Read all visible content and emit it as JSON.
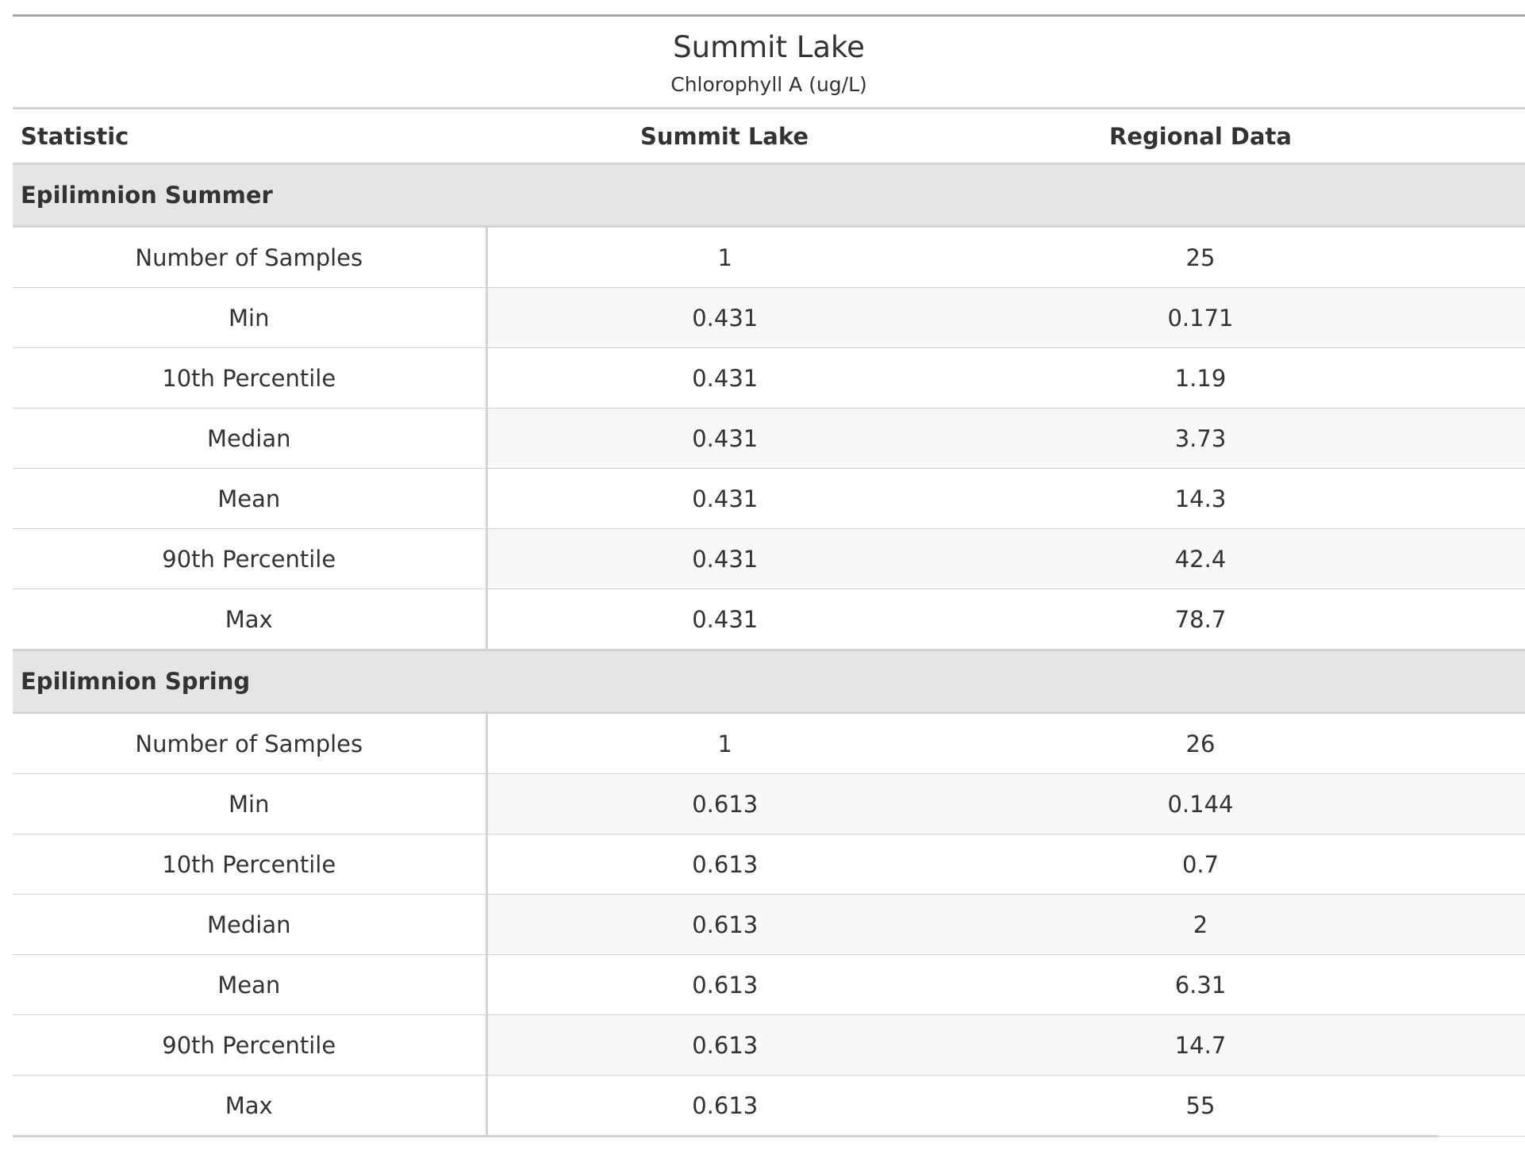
{
  "title": "Summit Lake",
  "subtitle": "Chlorophyll A (ug/L)",
  "columns": {
    "statistic": "Statistic",
    "lake": "Summit Lake",
    "regional": "Regional Data"
  },
  "groups": [
    {
      "name": "Epilimnion Summer",
      "rows": [
        {
          "label": "Number of Samples",
          "lake": "1",
          "regional": "25"
        },
        {
          "label": "Min",
          "lake": "0.431",
          "regional": "0.171"
        },
        {
          "label": "10th Percentile",
          "lake": "0.431",
          "regional": "1.19"
        },
        {
          "label": "Median",
          "lake": "0.431",
          "regional": "3.73"
        },
        {
          "label": "Mean",
          "lake": "0.431",
          "regional": "14.3"
        },
        {
          "label": "90th Percentile",
          "lake": "0.431",
          "regional": "42.4"
        },
        {
          "label": "Max",
          "lake": "0.431",
          "regional": "78.7"
        }
      ]
    },
    {
      "name": "Epilimnion Spring",
      "rows": [
        {
          "label": "Number of Samples",
          "lake": "1",
          "regional": "26"
        },
        {
          "label": "Min",
          "lake": "0.613",
          "regional": "0.144"
        },
        {
          "label": "10th Percentile",
          "lake": "0.613",
          "regional": "0.7"
        },
        {
          "label": "Median",
          "lake": "0.613",
          "regional": "2"
        },
        {
          "label": "Mean",
          "lake": "0.613",
          "regional": "6.31"
        },
        {
          "label": "90th Percentile",
          "lake": "0.613",
          "regional": "14.7"
        },
        {
          "label": "Max",
          "lake": "0.613",
          "regional": "55"
        }
      ]
    }
  ]
}
